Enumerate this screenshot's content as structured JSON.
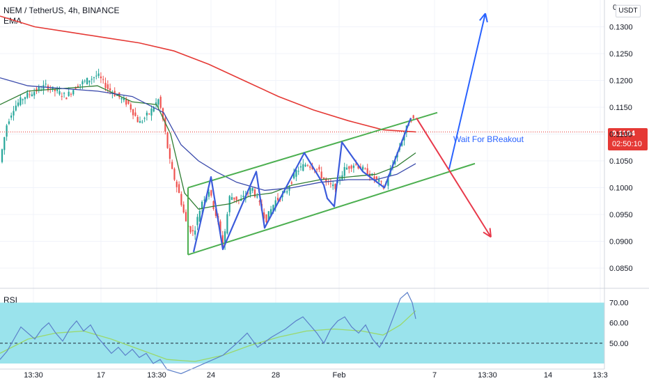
{
  "header": {
    "symbol_line": "NEM / TetherUS, 4h, BINANCE",
    "indicator": "EMA",
    "currency_badge": "USDT",
    "corner_label": "0"
  },
  "colors": {
    "candle_up": "#26a69a",
    "candle_down": "#ef5350",
    "ema_fast": "#2e7d32",
    "ema_mid": "#3949ab",
    "ema_slow": "#e53935",
    "channel": "#4caf50",
    "wave": "#3b5bdb",
    "arrow_up": "#2962ff",
    "arrow_down": "#e8394a",
    "rsi_band": "#9ae3ec",
    "rsi_line": "#5b7fc9",
    "rsi_ma": "#9ad86a",
    "price_badge": "#e53935"
  },
  "chart_data": [
    {
      "type": "line",
      "title": "NEM / TetherUS, 4h, BINANCE",
      "price_axis": {
        "ticks": [
          "0.1300",
          "0.1250",
          "0.1200",
          "0.1150",
          "0.1100",
          "0.1050",
          "0.1000",
          "0.0950",
          "0.0900",
          "0.0850"
        ],
        "ylim": [
          0.0815,
          0.135
        ]
      },
      "time_axis": {
        "ticks": [
          "13:30",
          "17",
          "13:30",
          "24",
          "28",
          "Feb",
          "7",
          "13:30",
          "14",
          "13:3"
        ]
      },
      "last_price": {
        "value": 0.1104,
        "label": "0.1104",
        "countdown": "02:50:10"
      },
      "price_series": {
        "name": "NEM/USDT",
        "points": [
          [
            0,
            0.105
          ],
          [
            10,
            0.112
          ],
          [
            20,
            0.115
          ],
          [
            35,
            0.117
          ],
          [
            50,
            0.118
          ],
          [
            65,
            0.119
          ],
          [
            80,
            0.118
          ],
          [
            95,
            0.117
          ],
          [
            110,
            0.119
          ],
          [
            125,
            0.12
          ],
          [
            140,
            0.121
          ],
          [
            155,
            0.1185
          ],
          [
            170,
            0.117
          ],
          [
            185,
            0.1155
          ],
          [
            200,
            0.112
          ],
          [
            215,
            0.114
          ],
          [
            228,
            0.1165
          ],
          [
            235,
            0.112
          ],
          [
            245,
            0.104
          ],
          [
            258,
            0.0985
          ],
          [
            268,
            0.093
          ],
          [
            278,
            0.0915
          ],
          [
            290,
            0.0975
          ],
          [
            300,
            0.0995
          ],
          [
            312,
            0.094
          ],
          [
            320,
            0.089
          ],
          [
            330,
            0.0985
          ],
          [
            345,
            0.0975
          ],
          [
            362,
            0.1
          ],
          [
            372,
            0.097
          ],
          [
            382,
            0.094
          ],
          [
            395,
            0.0975
          ],
          [
            410,
            0.099
          ],
          [
            425,
            0.103
          ],
          [
            440,
            0.1045
          ],
          [
            455,
            0.1035
          ],
          [
            468,
            0.101
          ],
          [
            480,
            0.1
          ],
          [
            495,
            0.1035
          ],
          [
            510,
            0.1045
          ],
          [
            525,
            0.103
          ],
          [
            540,
            0.1015
          ],
          [
            552,
            0.1
          ],
          [
            560,
            0.103
          ],
          [
            572,
            0.107
          ],
          [
            582,
            0.1105
          ],
          [
            590,
            0.113
          ],
          [
            598,
            0.1122
          ]
        ]
      },
      "ema_series": [
        {
          "key": "fast",
          "points": [
            [
              0,
              0.1155
            ],
            [
              40,
              0.118
            ],
            [
              90,
              0.1185
            ],
            [
              140,
              0.119
            ],
            [
              190,
              0.116
            ],
            [
              225,
              0.1155
            ],
            [
              245,
              0.11
            ],
            [
              265,
              0.099
            ],
            [
              285,
              0.096
            ],
            [
              305,
              0.0965
            ],
            [
              330,
              0.097
            ],
            [
              360,
              0.0985
            ],
            [
              390,
              0.099
            ],
            [
              420,
              0.1005
            ],
            [
              460,
              0.1015
            ],
            [
              500,
              0.102
            ],
            [
              540,
              0.1025
            ],
            [
              570,
              0.104
            ],
            [
              597,
              0.1065
            ]
          ]
        },
        {
          "key": "mid",
          "points": [
            [
              0,
              0.1205
            ],
            [
              40,
              0.119
            ],
            [
              90,
              0.1185
            ],
            [
              140,
              0.118
            ],
            [
              190,
              0.117
            ],
            [
              235,
              0.114
            ],
            [
              260,
              0.108
            ],
            [
              285,
              0.105
            ],
            [
              310,
              0.103
            ],
            [
              340,
              0.101
            ],
            [
              380,
              0.0995
            ],
            [
              420,
              0.1
            ],
            [
              460,
              0.101
            ],
            [
              500,
              0.1015
            ],
            [
              540,
              0.1015
            ],
            [
              570,
              0.1025
            ],
            [
              597,
              0.1045
            ]
          ]
        },
        {
          "key": "slow",
          "points": [
            [
              0,
              0.132
            ],
            [
              50,
              0.13
            ],
            [
              100,
              0.129
            ],
            [
              150,
              0.128
            ],
            [
              200,
              0.127
            ],
            [
              250,
              0.1255
            ],
            [
              300,
              0.123
            ],
            [
              350,
              0.12
            ],
            [
              400,
              0.117
            ],
            [
              450,
              0.1145
            ],
            [
              500,
              0.1125
            ],
            [
              550,
              0.1108
            ],
            [
              597,
              0.1104
            ]
          ]
        }
      ],
      "channel_lines": [
        {
          "from": [
            270,
            0.1
          ],
          "to": [
            628,
            0.114
          ]
        },
        {
          "from": [
            270,
            0.0875
          ],
          "to": [
            682,
            0.1045
          ]
        }
      ],
      "wave_points": [
        [
          278,
          0.088
        ],
        [
          303,
          0.102
        ],
        [
          320,
          0.0885
        ],
        [
          368,
          0.103
        ],
        [
          380,
          0.0925
        ],
        [
          437,
          0.1065
        ],
        [
          465,
          0.1005
        ],
        [
          470,
          0.098
        ],
        [
          480,
          0.0965
        ],
        [
          491,
          0.1085
        ],
        [
          521,
          0.103
        ],
        [
          552,
          0.1
        ],
        [
          590,
          0.113
        ]
      ],
      "projection_up": {
        "from": [
          645,
          0.1035
        ],
        "to": [
          697,
          0.1325
        ]
      },
      "projection_down": {
        "from": [
          598,
          0.113
        ],
        "to": [
          705,
          0.0908
        ]
      },
      "annotations": [
        {
          "text": "Wait For BReakout",
          "x": 651,
          "y": 0.109
        }
      ]
    },
    {
      "type": "line",
      "title": "RSI",
      "ticks": [
        "70.00",
        "60.00",
        "50.00"
      ],
      "ylim": [
        40,
        75
      ],
      "band": [
        30,
        70
      ],
      "midline": 50,
      "rsi_points": [
        [
          0,
          42
        ],
        [
          10,
          46
        ],
        [
          20,
          52
        ],
        [
          30,
          58
        ],
        [
          40,
          55
        ],
        [
          50,
          52
        ],
        [
          60,
          57
        ],
        [
          70,
          60
        ],
        [
          80,
          55
        ],
        [
          90,
          51
        ],
        [
          100,
          57
        ],
        [
          110,
          61
        ],
        [
          120,
          56
        ],
        [
          130,
          59
        ],
        [
          140,
          53
        ],
        [
          150,
          49
        ],
        [
          160,
          45
        ],
        [
          170,
          48
        ],
        [
          180,
          44
        ],
        [
          190,
          47
        ],
        [
          200,
          43
        ],
        [
          210,
          45
        ],
        [
          220,
          40
        ],
        [
          230,
          42
        ],
        [
          240,
          37
        ],
        [
          260,
          35
        ],
        [
          280,
          38
        ],
        [
          300,
          41
        ],
        [
          320,
          44
        ],
        [
          340,
          50
        ],
        [
          355,
          55
        ],
        [
          370,
          48
        ],
        [
          390,
          53
        ],
        [
          410,
          57
        ],
        [
          425,
          61
        ],
        [
          435,
          63
        ],
        [
          445,
          59
        ],
        [
          455,
          55
        ],
        [
          465,
          50
        ],
        [
          475,
          57
        ],
        [
          485,
          61
        ],
        [
          495,
          63
        ],
        [
          505,
          58
        ],
        [
          515,
          55
        ],
        [
          525,
          59
        ],
        [
          535,
          52
        ],
        [
          545,
          48
        ],
        [
          555,
          54
        ],
        [
          565,
          63
        ],
        [
          575,
          72
        ],
        [
          585,
          75
        ],
        [
          592,
          70
        ],
        [
          597,
          62
        ]
      ],
      "rsi_ma_points": [
        [
          0,
          45
        ],
        [
          40,
          52
        ],
        [
          80,
          55
        ],
        [
          120,
          56
        ],
        [
          160,
          52
        ],
        [
          200,
          47
        ],
        [
          240,
          42
        ],
        [
          280,
          41
        ],
        [
          320,
          44
        ],
        [
          360,
          49
        ],
        [
          400,
          53
        ],
        [
          440,
          56
        ],
        [
          480,
          57
        ],
        [
          520,
          56
        ],
        [
          550,
          54
        ],
        [
          575,
          59
        ],
        [
          597,
          66
        ]
      ]
    }
  ]
}
